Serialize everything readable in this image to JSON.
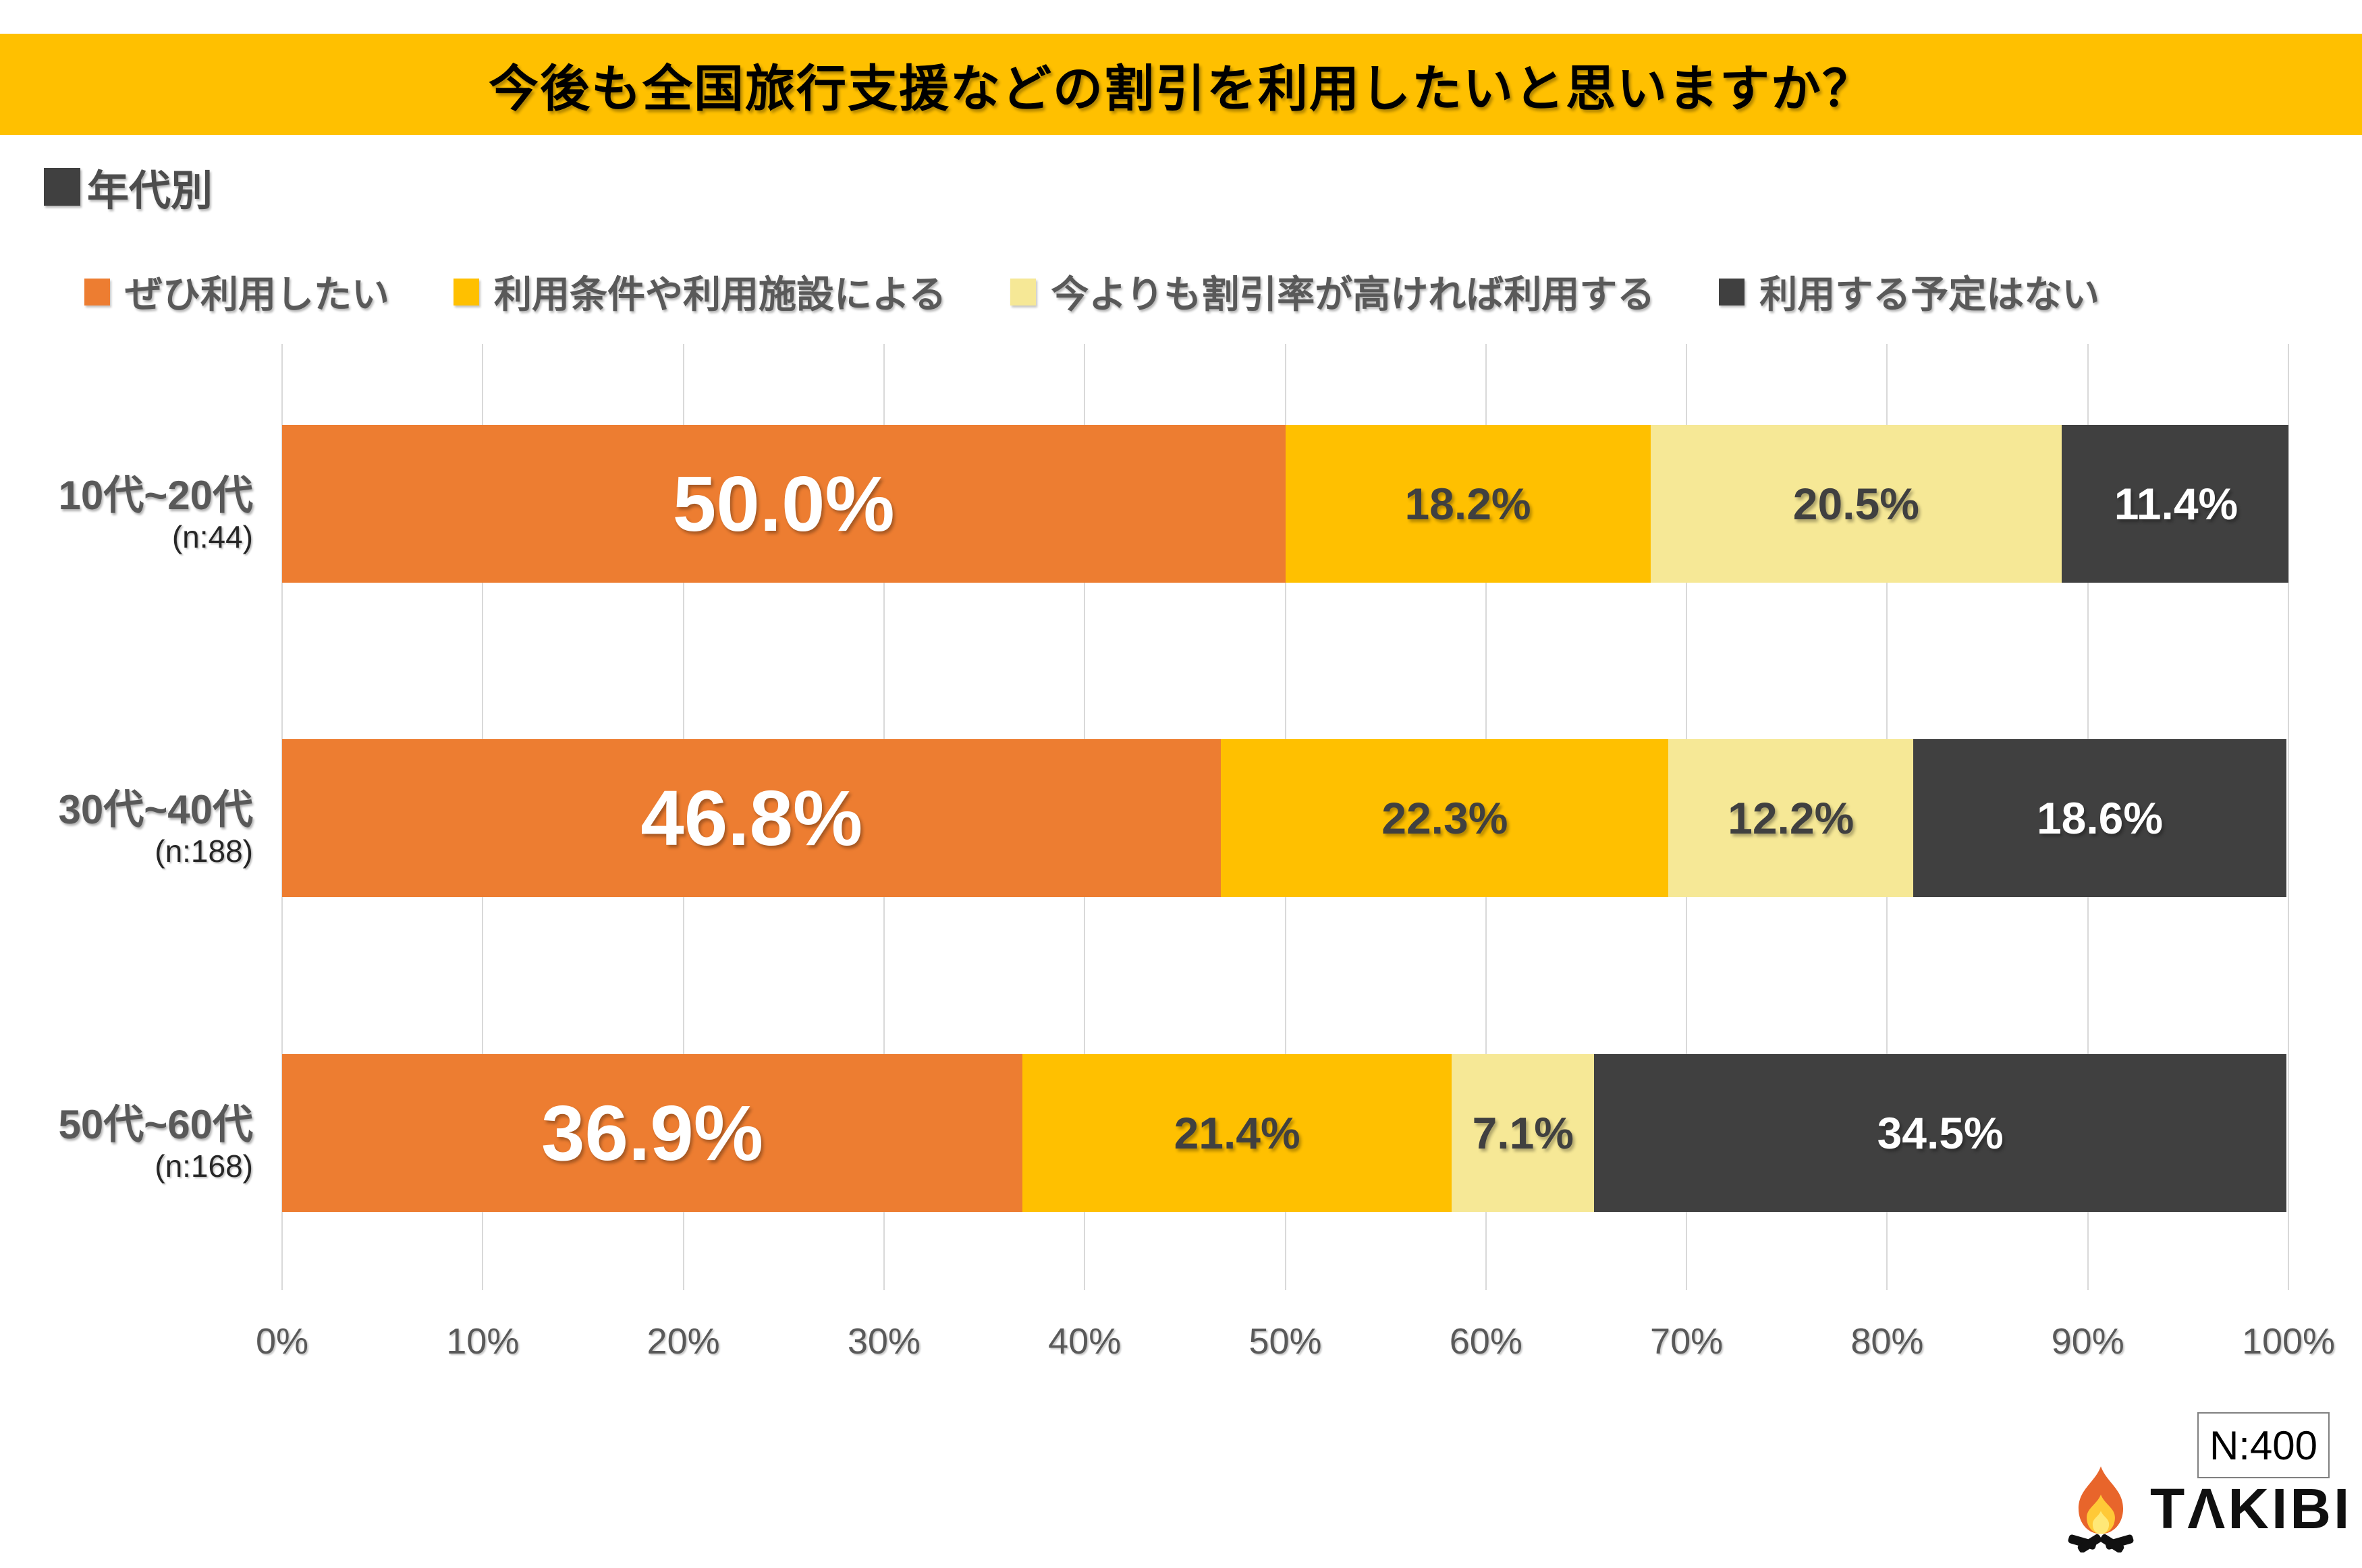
{
  "title": "今後も全国旅行支援などの割引を利用したいと思いますか？",
  "section_heading": {
    "marker": "■",
    "label": "年代別"
  },
  "legend": [
    {
      "label": "ぜひ利用したい",
      "color": "#ED7D31"
    },
    {
      "label": "利用条件や利用施設による",
      "color": "#FFC000"
    },
    {
      "label": "今よりも割引率が高ければ利用する",
      "color": "#F6E896"
    },
    {
      "label": "利用する予定はない",
      "color": "#404040"
    }
  ],
  "chart_data": {
    "type": "bar",
    "stacked": true,
    "orientation": "horizontal",
    "title": "今後も全国旅行支援などの割引を利用したいと思いますか？",
    "categories": [
      "10代~20代",
      "30代~40代",
      "50代~60代"
    ],
    "sample_sizes": [
      "(n:44)",
      "(n:188)",
      "(n:168)"
    ],
    "series": [
      {
        "name": "ぜひ利用したい",
        "color": "#ED7D31",
        "label_color": "#FFFFFF",
        "values": [
          50.0,
          46.8,
          36.9
        ]
      },
      {
        "name": "利用条件や利用施設による",
        "color": "#FFC000",
        "label_color": "#404040",
        "values": [
          18.2,
          22.3,
          21.4
        ]
      },
      {
        "name": "今よりも割引率が高ければ利用する",
        "color": "#F6E896",
        "label_color": "#404040",
        "values": [
          20.5,
          12.2,
          7.1
        ]
      },
      {
        "name": "利用する予定はない",
        "color": "#404040",
        "label_color": "#FFFFFF",
        "values": [
          11.4,
          18.6,
          34.5
        ]
      }
    ],
    "value_label_suffix": "%",
    "x_ticks": [
      "0%",
      "10%",
      "20%",
      "30%",
      "40%",
      "50%",
      "60%",
      "70%",
      "80%",
      "90%",
      "100%"
    ],
    "xlim": [
      0,
      100
    ],
    "grid": true,
    "legend_position": "top"
  },
  "footer": {
    "n_badge": "N:400",
    "brand": "TAKIBI",
    "brand_display": "TΛKIBI"
  },
  "colors": {
    "title_band": "#FFC000",
    "grid": "#D9D9D9",
    "axis_text": "#595959",
    "category_text": "#595959",
    "note_text": "#262626"
  }
}
